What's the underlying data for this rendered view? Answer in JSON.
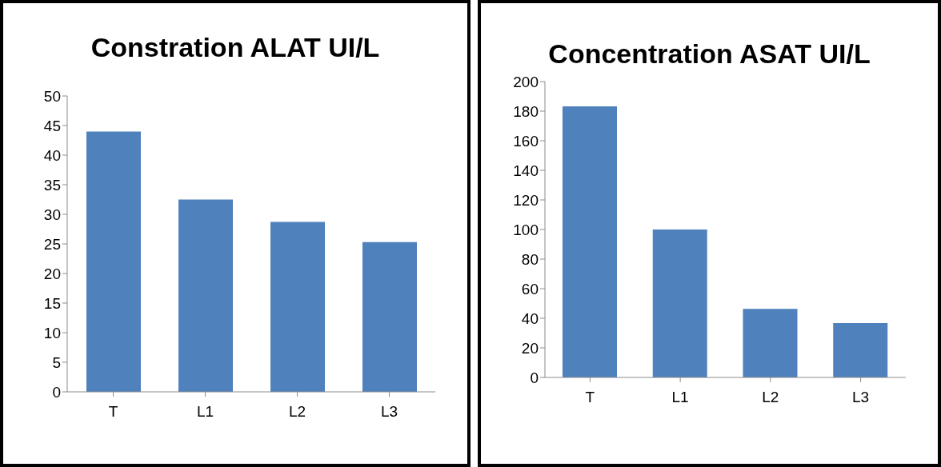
{
  "chart_data": [
    {
      "type": "bar",
      "title": "Constration ALAT UI/L",
      "categories": [
        "T",
        "L1",
        "L2",
        "L3"
      ],
      "values": [
        44,
        32.5,
        28.7,
        25.3
      ],
      "color": "#4f81bd",
      "ylim": [
        0,
        50
      ],
      "yticks": [
        0,
        5,
        10,
        15,
        20,
        25,
        30,
        35,
        40,
        45,
        50
      ],
      "grid": false,
      "legend": false
    },
    {
      "type": "bar",
      "title": "Concentration ASAT UI/L",
      "categories": [
        "T",
        "L1",
        "L2",
        "L3"
      ],
      "values": [
        183.2,
        100,
        46.4,
        36.7
      ],
      "color": "#4f81bd",
      "ylim": [
        0,
        200
      ],
      "yticks": [
        0,
        20,
        40,
        60,
        80,
        100,
        120,
        140,
        160,
        180,
        200
      ],
      "grid": false,
      "legend": false
    }
  ]
}
